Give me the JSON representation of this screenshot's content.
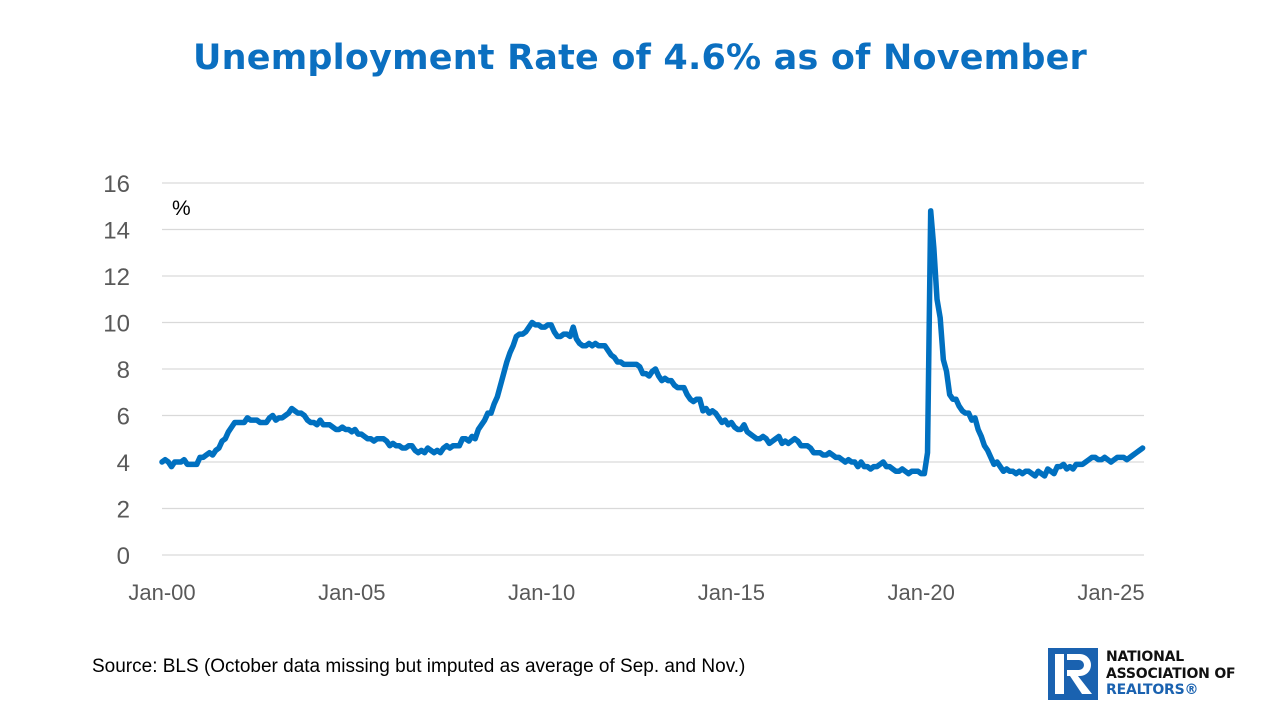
{
  "title": "Unemployment Rate of 4.6% as of November",
  "source": "Source: BLS (October data missing but imputed as average of Sep. and Nov.)",
  "logo": {
    "line1": "NATIONAL",
    "line2": "ASSOCIATION OF",
    "line3": "REALTORS®",
    "icon": "realtor-r-logo-icon"
  },
  "colors": {
    "title": "#0b6fc0",
    "line": "#0070c0",
    "grid": "#d9d9d9",
    "tick": "#595959",
    "logo_blue": "#1a62b0"
  },
  "chart_data": {
    "type": "line",
    "title": "Unemployment Rate of 4.6% as of November",
    "xlabel": "",
    "ylabel": "%",
    "ylim": [
      0,
      16
    ],
    "yticks": [
      "0",
      "2",
      "4",
      "6",
      "8",
      "10",
      "12",
      "14",
      "16"
    ],
    "xticks": [
      "Jan-00",
      "Jan-05",
      "Jan-10",
      "Jan-15",
      "Jan-20",
      "Jan-25"
    ],
    "grid": true,
    "x_start": "Jan-2000",
    "x_end": "Nov-2025",
    "frequency": "monthly",
    "series": [
      {
        "name": "Unemployment Rate",
        "values": [
          4.0,
          4.1,
          4.0,
          3.8,
          4.0,
          4.0,
          4.0,
          4.1,
          3.9,
          3.9,
          3.9,
          3.9,
          4.2,
          4.2,
          4.3,
          4.4,
          4.3,
          4.5,
          4.6,
          4.9,
          5.0,
          5.3,
          5.5,
          5.7,
          5.7,
          5.7,
          5.7,
          5.9,
          5.8,
          5.8,
          5.8,
          5.7,
          5.7,
          5.7,
          5.9,
          6.0,
          5.8,
          5.9,
          5.9,
          6.0,
          6.1,
          6.3,
          6.2,
          6.1,
          6.1,
          6.0,
          5.8,
          5.7,
          5.7,
          5.6,
          5.8,
          5.6,
          5.6,
          5.6,
          5.5,
          5.4,
          5.4,
          5.5,
          5.4,
          5.4,
          5.3,
          5.4,
          5.2,
          5.2,
          5.1,
          5.0,
          5.0,
          4.9,
          5.0,
          5.0,
          5.0,
          4.9,
          4.7,
          4.8,
          4.7,
          4.7,
          4.6,
          4.6,
          4.7,
          4.7,
          4.5,
          4.4,
          4.5,
          4.4,
          4.6,
          4.5,
          4.4,
          4.5,
          4.4,
          4.6,
          4.7,
          4.6,
          4.7,
          4.7,
          4.7,
          5.0,
          5.0,
          4.9,
          5.1,
          5.0,
          5.4,
          5.6,
          5.8,
          6.1,
          6.1,
          6.5,
          6.8,
          7.3,
          7.8,
          8.3,
          8.7,
          9.0,
          9.4,
          9.5,
          9.5,
          9.6,
          9.8,
          10.0,
          9.9,
          9.9,
          9.8,
          9.8,
          9.9,
          9.9,
          9.6,
          9.4,
          9.4,
          9.5,
          9.5,
          9.4,
          9.8,
          9.3,
          9.1,
          9.0,
          9.0,
          9.1,
          9.0,
          9.1,
          9.0,
          9.0,
          9.0,
          8.8,
          8.6,
          8.5,
          8.3,
          8.3,
          8.2,
          8.2,
          8.2,
          8.2,
          8.2,
          8.1,
          7.8,
          7.8,
          7.7,
          7.9,
          8.0,
          7.7,
          7.5,
          7.6,
          7.5,
          7.5,
          7.3,
          7.2,
          7.2,
          7.2,
          6.9,
          6.7,
          6.6,
          6.7,
          6.7,
          6.2,
          6.3,
          6.1,
          6.2,
          6.1,
          5.9,
          5.7,
          5.8,
          5.6,
          5.7,
          5.5,
          5.4,
          5.4,
          5.6,
          5.3,
          5.2,
          5.1,
          5.0,
          5.0,
          5.1,
          5.0,
          4.8,
          4.9,
          5.0,
          5.1,
          4.8,
          4.9,
          4.8,
          4.9,
          5.0,
          4.9,
          4.7,
          4.7,
          4.7,
          4.6,
          4.4,
          4.4,
          4.4,
          4.3,
          4.3,
          4.4,
          4.3,
          4.2,
          4.2,
          4.1,
          4.0,
          4.1,
          4.0,
          4.0,
          3.8,
          4.0,
          3.8,
          3.8,
          3.7,
          3.8,
          3.8,
          3.9,
          4.0,
          3.8,
          3.8,
          3.7,
          3.6,
          3.6,
          3.7,
          3.6,
          3.5,
          3.6,
          3.6,
          3.6,
          3.5,
          3.5,
          4.4,
          14.8,
          13.2,
          11.0,
          10.2,
          8.4,
          7.9,
          6.9,
          6.7,
          6.7,
          6.4,
          6.2,
          6.1,
          6.1,
          5.8,
          5.9,
          5.4,
          5.1,
          4.7,
          4.5,
          4.2,
          3.9,
          4.0,
          3.8,
          3.6,
          3.7,
          3.6,
          3.6,
          3.5,
          3.6,
          3.5,
          3.6,
          3.6,
          3.5,
          3.4,
          3.6,
          3.5,
          3.4,
          3.7,
          3.6,
          3.5,
          3.8,
          3.8,
          3.9,
          3.7,
          3.8,
          3.7,
          3.9,
          3.9,
          3.9,
          4.0,
          4.1,
          4.2,
          4.2,
          4.1,
          4.1,
          4.2,
          4.1,
          4.0,
          4.1,
          4.2,
          4.2,
          4.2,
          4.1,
          4.2,
          4.3,
          4.4,
          4.5,
          4.6
        ]
      }
    ]
  }
}
